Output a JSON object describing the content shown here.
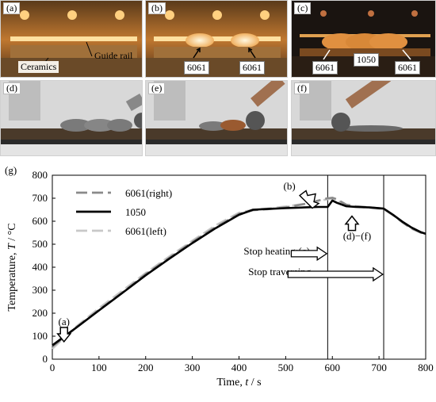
{
  "panels": {
    "a": {
      "label": "(a)",
      "callouts": [
        "Guide rail",
        "Ceramics"
      ]
    },
    "b": {
      "label": "(b)",
      "callouts": [
        "6061",
        "6061"
      ]
    },
    "c": {
      "label": "(c)",
      "callouts": [
        "1050",
        "6061",
        "6061"
      ]
    },
    "d": {
      "label": "(d)"
    },
    "e": {
      "label": "(e)"
    },
    "f": {
      "label": "(f)"
    }
  },
  "colors": {
    "dark_bg": "#1a1410",
    "glow": "#f0b060",
    "line_6061_right": "#8a8a8a",
    "line_1050": "#000000",
    "line_6061_left": "#c8c8c8"
  },
  "chart_data": {
    "type": "line",
    "panel_label": "(g)",
    "xlabel_prefix": "Time, ",
    "xlabel_var": "t",
    "xlabel_unit": " / s",
    "ylabel_prefix": "Temperature, ",
    "ylabel_var": "T",
    "ylabel_unit": " / °C",
    "xlim": [
      0,
      800
    ],
    "ylim": [
      0,
      800
    ],
    "xticks": [
      "0",
      "100",
      "200",
      "300",
      "400",
      "500",
      "600",
      "700",
      "800"
    ],
    "yticks": [
      "0",
      "100",
      "200",
      "300",
      "400",
      "500",
      "600",
      "700",
      "800"
    ],
    "grid": false,
    "legend_position": "top-left",
    "series": [
      {
        "name": "6061(right)",
        "style": "dashed",
        "color": "#8a8a8a",
        "x": [
          0,
          50,
          100,
          150,
          200,
          250,
          300,
          350,
          400,
          430,
          460,
          500,
          540,
          570,
          590,
          600,
          610,
          630,
          650,
          680,
          710,
          730,
          750,
          770,
          790,
          800
        ],
        "y": [
          55,
          135,
          215,
          290,
          370,
          440,
          510,
          575,
          632,
          648,
          652,
          660,
          675,
          690,
          700,
          702,
          695,
          672,
          665,
          660,
          655,
          628,
          595,
          568,
          550,
          545
        ]
      },
      {
        "name": "1050",
        "style": "solid",
        "color": "#000000",
        "x": [
          0,
          50,
          100,
          150,
          200,
          250,
          300,
          350,
          400,
          430,
          460,
          500,
          540,
          570,
          590,
          600,
          610,
          630,
          650,
          680,
          710,
          730,
          750,
          770,
          790,
          800
        ],
        "y": [
          60,
          135,
          212,
          288,
          365,
          436,
          505,
          570,
          628,
          650,
          653,
          657,
          660,
          662,
          662,
          690,
          680,
          665,
          662,
          660,
          655,
          628,
          598,
          572,
          552,
          545
        ]
      },
      {
        "name": "6061(left)",
        "style": "dashed",
        "color": "#c8c8c8",
        "x": [
          0,
          50,
          100,
          150,
          200,
          250,
          300,
          350,
          400,
          430,
          460,
          500,
          540,
          570,
          590,
          600,
          610,
          630,
          650,
          680,
          710,
          730,
          750,
          770,
          790,
          800
        ],
        "y": [
          45,
          140,
          222,
          298,
          375,
          446,
          515,
          582,
          637,
          650,
          655,
          664,
          676,
          688,
          696,
          698,
          690,
          670,
          664,
          658,
          652,
          626,
          596,
          570,
          552,
          545
        ]
      }
    ],
    "vlines": [
      590,
      710
    ],
    "annotations": {
      "a": "(a)",
      "b": "(b)",
      "df": "(d)−(f)",
      "stop_heating": "Stop heating:(c)",
      "stop_traversing": "Stop traversing"
    }
  }
}
